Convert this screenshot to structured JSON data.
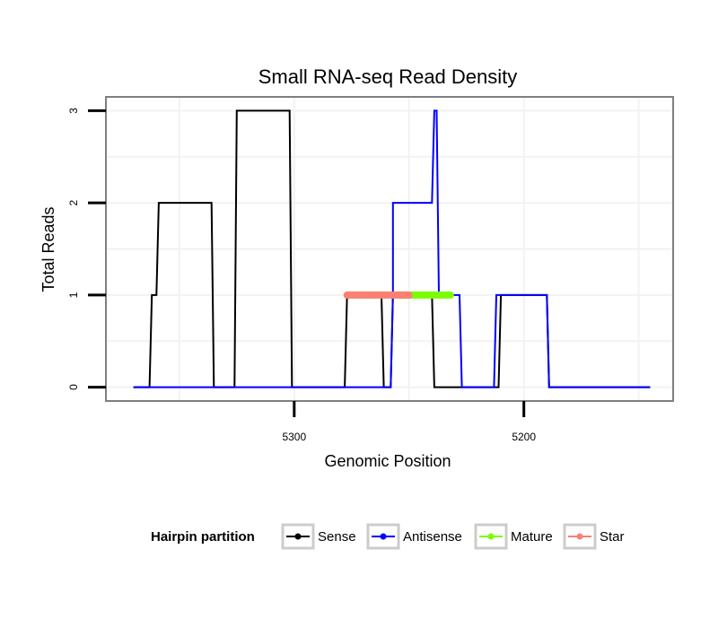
{
  "chart_data": {
    "type": "line",
    "title": "Small RNA-seq Read Density",
    "xlabel": "Genomic Position",
    "ylabel": "Total Reads",
    "x_reversed": true,
    "xlim": [
      5382,
      5135
    ],
    "ylim": [
      -0.15,
      3.15
    ],
    "x_ticks": [
      5300,
      5200
    ],
    "y_ticks": [
      0,
      1,
      2,
      3
    ],
    "grid": true,
    "legend_position": "bottom",
    "legend_title": "Hairpin partition",
    "colors": {
      "Sense": "#000000",
      "Antisense": "#0000ff",
      "Mature": "#7cfc00",
      "Star": "#fa8072"
    },
    "series": [
      {
        "name": "Sense",
        "points": [
          [
            5370,
            0
          ],
          [
            5363,
            0
          ],
          [
            5362,
            1
          ],
          [
            5360,
            1
          ],
          [
            5359,
            2
          ],
          [
            5336,
            2
          ],
          [
            5335,
            0
          ],
          [
            5326,
            0
          ],
          [
            5325,
            3
          ],
          [
            5302,
            3
          ],
          [
            5301,
            0
          ],
          [
            5278,
            0
          ],
          [
            5277,
            1
          ],
          [
            5262,
            1
          ],
          [
            5261,
            0
          ],
          [
            5258,
            0
          ],
          [
            5257,
            1
          ],
          [
            5240,
            1
          ],
          [
            5239,
            0
          ],
          [
            5211,
            0
          ],
          [
            5210,
            1
          ],
          [
            5190,
            1
          ],
          [
            5189,
            0
          ],
          [
            5145,
            0
          ]
        ]
      },
      {
        "name": "Antisense",
        "points": [
          [
            5370,
            0
          ],
          [
            5258,
            0
          ],
          [
            5257,
            1
          ],
          [
            5257,
            2
          ],
          [
            5240,
            2
          ],
          [
            5239,
            3
          ],
          [
            5238,
            3
          ],
          [
            5237,
            1
          ],
          [
            5228,
            1
          ],
          [
            5227,
            0
          ],
          [
            5213,
            0
          ],
          [
            5212,
            1
          ],
          [
            5190,
            1
          ],
          [
            5189,
            0
          ],
          [
            5145,
            0
          ]
        ]
      },
      {
        "name": "Mature",
        "points": [
          [
            5255,
            1
          ],
          [
            5232,
            1
          ]
        ]
      },
      {
        "name": "Star",
        "points": [
          [
            5277,
            1
          ],
          [
            5250,
            1
          ]
        ]
      }
    ],
    "legend": [
      "Sense",
      "Antisense",
      "Mature",
      "Star"
    ]
  }
}
